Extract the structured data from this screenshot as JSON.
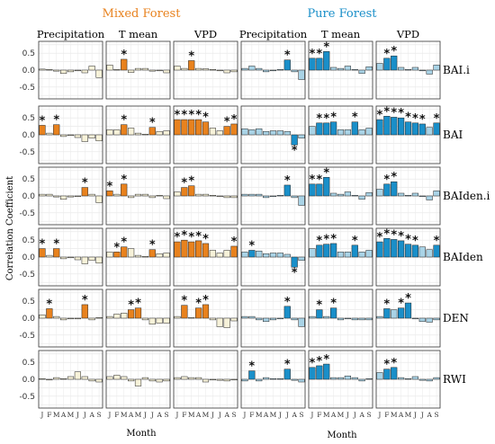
{
  "chart_data": {
    "type": "bar",
    "groups": [
      {
        "name": "Mixed Forest",
        "color": "#e8821e",
        "light_color": "#f7f2d9"
      },
      {
        "name": "Pure Forest",
        "color": "#1a8fc9",
        "light_color": "#a9d3e6"
      }
    ],
    "variables": [
      "Precipitation",
      "T mean",
      "VPD"
    ],
    "indices": [
      "BAI.i",
      "BAI",
      "BAIden.i",
      "BAIden",
      "DEN",
      "RWI"
    ],
    "months": [
      "J",
      "F",
      "M",
      "A",
      "M",
      "J",
      "J",
      "A",
      "S"
    ],
    "ylabel": "Correlation Coefficient",
    "xlabel": "Month",
    "ylim": [
      -0.85,
      0.85
    ],
    "yticks": [
      "0.5",
      "0.0",
      "-0.5"
    ],
    "panels": [
      {
        "index": "BAI.i",
        "group": "Mixed Forest",
        "variable": "Precipitation",
        "values": [
          0.03,
          0.02,
          -0.03,
          -0.1,
          -0.05,
          -0.02,
          -0.08,
          0.12,
          -0.22
        ],
        "significant": [
          0,
          0,
          0,
          0,
          0,
          0,
          0,
          0,
          0
        ]
      },
      {
        "index": "BAI.i",
        "group": "Mixed Forest",
        "variable": "T mean",
        "values": [
          0.15,
          0.02,
          0.32,
          -0.07,
          0.05,
          0.05,
          -0.03,
          -0.02,
          -0.08
        ],
        "significant": [
          0,
          0,
          1,
          0,
          0,
          0,
          0,
          0,
          0
        ]
      },
      {
        "index": "BAI.i",
        "group": "Mixed Forest",
        "variable": "VPD",
        "values": [
          0.12,
          0.05,
          0.28,
          0.05,
          0.04,
          0.02,
          -0.02,
          -0.08,
          -0.05
        ],
        "significant": [
          0,
          0,
          1,
          0,
          0,
          0,
          0,
          0,
          0
        ]
      },
      {
        "index": "BAI.i",
        "group": "Pure Forest",
        "variable": "Precipitation",
        "values": [
          0.05,
          0.12,
          0.05,
          -0.05,
          -0.02,
          0.02,
          0.3,
          -0.05,
          -0.28
        ],
        "significant": [
          0,
          0,
          0,
          0,
          0,
          0,
          1,
          0,
          0
        ]
      },
      {
        "index": "BAI.i",
        "group": "Pure Forest",
        "variable": "T mean",
        "values": [
          0.35,
          0.35,
          0.55,
          0.08,
          0.05,
          0.12,
          0.02,
          -0.1,
          0.1
        ],
        "significant": [
          1,
          1,
          1,
          0,
          0,
          0,
          0,
          0,
          0
        ]
      },
      {
        "index": "BAI.i",
        "group": "Pure Forest",
        "variable": "VPD",
        "values": [
          0.2,
          0.35,
          0.42,
          0.08,
          0.02,
          0.08,
          -0.02,
          -0.12,
          0.15
        ],
        "significant": [
          0,
          1,
          1,
          0,
          0,
          0,
          0,
          0,
          0
        ]
      },
      {
        "index": "BAI",
        "group": "Mixed Forest",
        "variable": "Precipitation",
        "values": [
          0.28,
          0.05,
          0.3,
          -0.05,
          -0.02,
          -0.08,
          -0.2,
          -0.1,
          -0.18
        ],
        "significant": [
          1,
          0,
          1,
          0,
          0,
          0,
          0,
          0,
          0
        ]
      },
      {
        "index": "BAI",
        "group": "Mixed Forest",
        "variable": "T mean",
        "values": [
          0.15,
          0.15,
          0.3,
          0.2,
          0.05,
          0.02,
          0.22,
          0.1,
          0.12
        ],
        "significant": [
          0,
          0,
          1,
          0,
          0,
          0,
          1,
          0,
          0
        ]
      },
      {
        "index": "BAI",
        "group": "Mixed Forest",
        "variable": "VPD",
        "values": [
          0.45,
          0.45,
          0.45,
          0.45,
          0.38,
          0.2,
          0.12,
          0.25,
          0.32
        ],
        "significant": [
          1,
          1,
          1,
          1,
          1,
          0,
          0,
          1,
          1
        ]
      },
      {
        "index": "BAI",
        "group": "Pure Forest",
        "variable": "Precipitation",
        "values": [
          0.18,
          0.15,
          0.18,
          0.1,
          0.12,
          0.12,
          0.1,
          -0.3,
          -0.1
        ],
        "significant": [
          0,
          0,
          0,
          0,
          0,
          0,
          0,
          1,
          0
        ]
      },
      {
        "index": "BAI",
        "group": "Pure Forest",
        "variable": "T mean",
        "values": [
          0.25,
          0.35,
          0.35,
          0.38,
          0.15,
          0.15,
          0.38,
          0.15,
          0.2
        ],
        "significant": [
          0,
          1,
          1,
          1,
          0,
          0,
          1,
          0,
          0
        ]
      },
      {
        "index": "BAI",
        "group": "Pure Forest",
        "variable": "VPD",
        "values": [
          0.45,
          0.55,
          0.52,
          0.5,
          0.38,
          0.35,
          0.32,
          0.22,
          0.35
        ],
        "significant": [
          1,
          1,
          1,
          1,
          1,
          1,
          1,
          0,
          1
        ]
      },
      {
        "index": "BAIden.i",
        "group": "Mixed Forest",
        "variable": "Precipitation",
        "values": [
          0.05,
          0.05,
          -0.03,
          -0.1,
          -0.03,
          -0.02,
          0.25,
          0.05,
          -0.2
        ],
        "significant": [
          0,
          0,
          0,
          0,
          0,
          0,
          1,
          0,
          0
        ]
      },
      {
        "index": "BAIden.i",
        "group": "Mixed Forest",
        "variable": "T mean",
        "values": [
          0.15,
          0.05,
          0.35,
          -0.05,
          0.05,
          0.05,
          -0.05,
          0.02,
          -0.08
        ],
        "significant": [
          1,
          0,
          1,
          0,
          0,
          0,
          0,
          0,
          0
        ]
      },
      {
        "index": "BAIden.i",
        "group": "Mixed Forest",
        "variable": "VPD",
        "values": [
          0.12,
          0.25,
          0.3,
          0.05,
          0.05,
          0.02,
          -0.02,
          -0.05,
          -0.05
        ],
        "significant": [
          0,
          1,
          1,
          0,
          0,
          0,
          0,
          0,
          0
        ]
      },
      {
        "index": "BAIden.i",
        "group": "Pure Forest",
        "variable": "Precipitation",
        "values": [
          0.05,
          0.05,
          0.05,
          -0.05,
          -0.02,
          0.02,
          0.32,
          -0.05,
          -0.28
        ],
        "significant": [
          0,
          0,
          0,
          0,
          0,
          0,
          1,
          0,
          0
        ]
      },
      {
        "index": "BAIden.i",
        "group": "Pure Forest",
        "variable": "T mean",
        "values": [
          0.35,
          0.35,
          0.55,
          0.08,
          0.05,
          0.12,
          0.02,
          -0.1,
          0.1
        ],
        "significant": [
          1,
          1,
          1,
          0,
          0,
          0,
          0,
          0,
          0
        ]
      },
      {
        "index": "BAIden.i",
        "group": "Pure Forest",
        "variable": "VPD",
        "values": [
          0.2,
          0.35,
          0.42,
          0.08,
          0.02,
          0.08,
          -0.02,
          -0.12,
          0.15
        ],
        "significant": [
          0,
          1,
          1,
          0,
          0,
          0,
          0,
          0,
          0
        ]
      },
      {
        "index": "BAIden",
        "group": "Mixed Forest",
        "variable": "Precipitation",
        "values": [
          0.25,
          0.05,
          0.25,
          -0.05,
          -0.02,
          -0.08,
          -0.2,
          -0.1,
          -0.18
        ],
        "significant": [
          1,
          0,
          1,
          0,
          0,
          0,
          0,
          0,
          0
        ]
      },
      {
        "index": "BAIden",
        "group": "Mixed Forest",
        "variable": "T mean",
        "values": [
          0.15,
          0.15,
          0.3,
          0.25,
          0.05,
          0.02,
          0.22,
          0.1,
          0.12
        ],
        "significant": [
          0,
          1,
          1,
          0,
          0,
          0,
          1,
          0,
          0
        ]
      },
      {
        "index": "BAIden",
        "group": "Mixed Forest",
        "variable": "VPD",
        "values": [
          0.45,
          0.5,
          0.45,
          0.48,
          0.4,
          0.2,
          0.12,
          0.2,
          0.32
        ],
        "significant": [
          1,
          1,
          1,
          1,
          1,
          0,
          0,
          0,
          1
        ]
      },
      {
        "index": "BAIden",
        "group": "Pure Forest",
        "variable": "Precipitation",
        "values": [
          0.15,
          0.2,
          0.18,
          0.1,
          0.12,
          0.12,
          0.08,
          -0.3,
          -0.1
        ],
        "significant": [
          0,
          1,
          0,
          0,
          0,
          0,
          0,
          1,
          0
        ]
      },
      {
        "index": "BAIden",
        "group": "Pure Forest",
        "variable": "T mean",
        "values": [
          0.25,
          0.35,
          0.38,
          0.4,
          0.15,
          0.15,
          0.35,
          0.15,
          0.2
        ],
        "significant": [
          0,
          1,
          1,
          1,
          0,
          0,
          1,
          0,
          0
        ]
      },
      {
        "index": "BAIden",
        "group": "Pure Forest",
        "variable": "VPD",
        "values": [
          0.45,
          0.55,
          0.52,
          0.48,
          0.38,
          0.35,
          0.3,
          0.22,
          0.35
        ],
        "significant": [
          1,
          1,
          1,
          1,
          1,
          1,
          0,
          0,
          1
        ]
      },
      {
        "index": "DEN",
        "group": "Mixed Forest",
        "variable": "Precipitation",
        "values": [
          0.1,
          0.28,
          0.05,
          -0.05,
          -0.02,
          -0.02,
          0.4,
          -0.05,
          0.02
        ],
        "significant": [
          0,
          1,
          0,
          0,
          0,
          0,
          1,
          0,
          0
        ]
      },
      {
        "index": "DEN",
        "group": "Mixed Forest",
        "variable": "T mean",
        "values": [
          0.05,
          0.12,
          0.15,
          0.25,
          0.3,
          -0.05,
          -0.18,
          -0.15,
          -0.15
        ],
        "significant": [
          0,
          0,
          0,
          1,
          1,
          0,
          0,
          0,
          0
        ]
      },
      {
        "index": "DEN",
        "group": "Mixed Forest",
        "variable": "VPD",
        "values": [
          0.05,
          0.38,
          0.02,
          0.3,
          0.4,
          -0.05,
          -0.25,
          -0.28,
          -0.08
        ],
        "significant": [
          0,
          1,
          0,
          1,
          1,
          0,
          0,
          0,
          0
        ]
      },
      {
        "index": "DEN",
        "group": "Pure Forest",
        "variable": "Precipitation",
        "values": [
          0.05,
          0.05,
          -0.05,
          -0.1,
          -0.05,
          0.0,
          0.35,
          -0.05,
          -0.25
        ],
        "significant": [
          0,
          0,
          0,
          0,
          0,
          0,
          1,
          0,
          0
        ]
      },
      {
        "index": "DEN",
        "group": "Pure Forest",
        "variable": "T mean",
        "values": [
          0.05,
          0.25,
          0.05,
          0.3,
          -0.05,
          -0.02,
          -0.05,
          -0.05,
          -0.05
        ],
        "significant": [
          0,
          1,
          0,
          1,
          0,
          0,
          0,
          0,
          0
        ]
      },
      {
        "index": "DEN",
        "group": "Pure Forest",
        "variable": "VPD",
        "values": [
          0.05,
          0.28,
          0.25,
          0.3,
          0.45,
          -0.02,
          -0.1,
          -0.12,
          -0.05
        ],
        "significant": [
          0,
          1,
          0,
          1,
          1,
          0,
          0,
          0,
          0
        ]
      },
      {
        "index": "RWI",
        "group": "Mixed Forest",
        "variable": "Precipitation",
        "values": [
          0.02,
          0.0,
          0.05,
          0.02,
          0.08,
          0.22,
          0.08,
          -0.05,
          -0.08
        ],
        "significant": [
          0,
          0,
          0,
          0,
          0,
          0,
          0,
          0,
          0
        ]
      },
      {
        "index": "RWI",
        "group": "Mixed Forest",
        "variable": "T mean",
        "values": [
          0.08,
          0.12,
          0.08,
          -0.05,
          -0.2,
          0.05,
          -0.05,
          -0.08,
          -0.05
        ],
        "significant": [
          0,
          0,
          0,
          0,
          0,
          0,
          0,
          0,
          0
        ]
      },
      {
        "index": "RWI",
        "group": "Mixed Forest",
        "variable": "VPD",
        "values": [
          0.05,
          0.08,
          0.05,
          0.05,
          -0.08,
          0.0,
          -0.03,
          -0.05,
          -0.02
        ],
        "significant": [
          0,
          0,
          0,
          0,
          0,
          0,
          0,
          0,
          0
        ]
      },
      {
        "index": "RWI",
        "group": "Pure Forest",
        "variable": "Precipitation",
        "values": [
          -0.05,
          0.25,
          -0.05,
          0.05,
          0.02,
          0.02,
          0.3,
          -0.03,
          -0.08
        ],
        "significant": [
          0,
          1,
          0,
          0,
          0,
          0,
          1,
          0,
          0
        ]
      },
      {
        "index": "RWI",
        "group": "Pure Forest",
        "variable": "T mean",
        "values": [
          0.35,
          0.4,
          0.45,
          0.05,
          0.05,
          0.1,
          0.05,
          -0.05,
          0.02
        ],
        "significant": [
          1,
          1,
          1,
          0,
          0,
          0,
          0,
          0,
          0
        ]
      },
      {
        "index": "RWI",
        "group": "Pure Forest",
        "variable": "VPD",
        "values": [
          0.2,
          0.3,
          0.35,
          0.05,
          0.02,
          0.08,
          -0.03,
          -0.05,
          0.05
        ],
        "significant": [
          0,
          1,
          1,
          0,
          0,
          0,
          0,
          0,
          0
        ]
      }
    ]
  }
}
